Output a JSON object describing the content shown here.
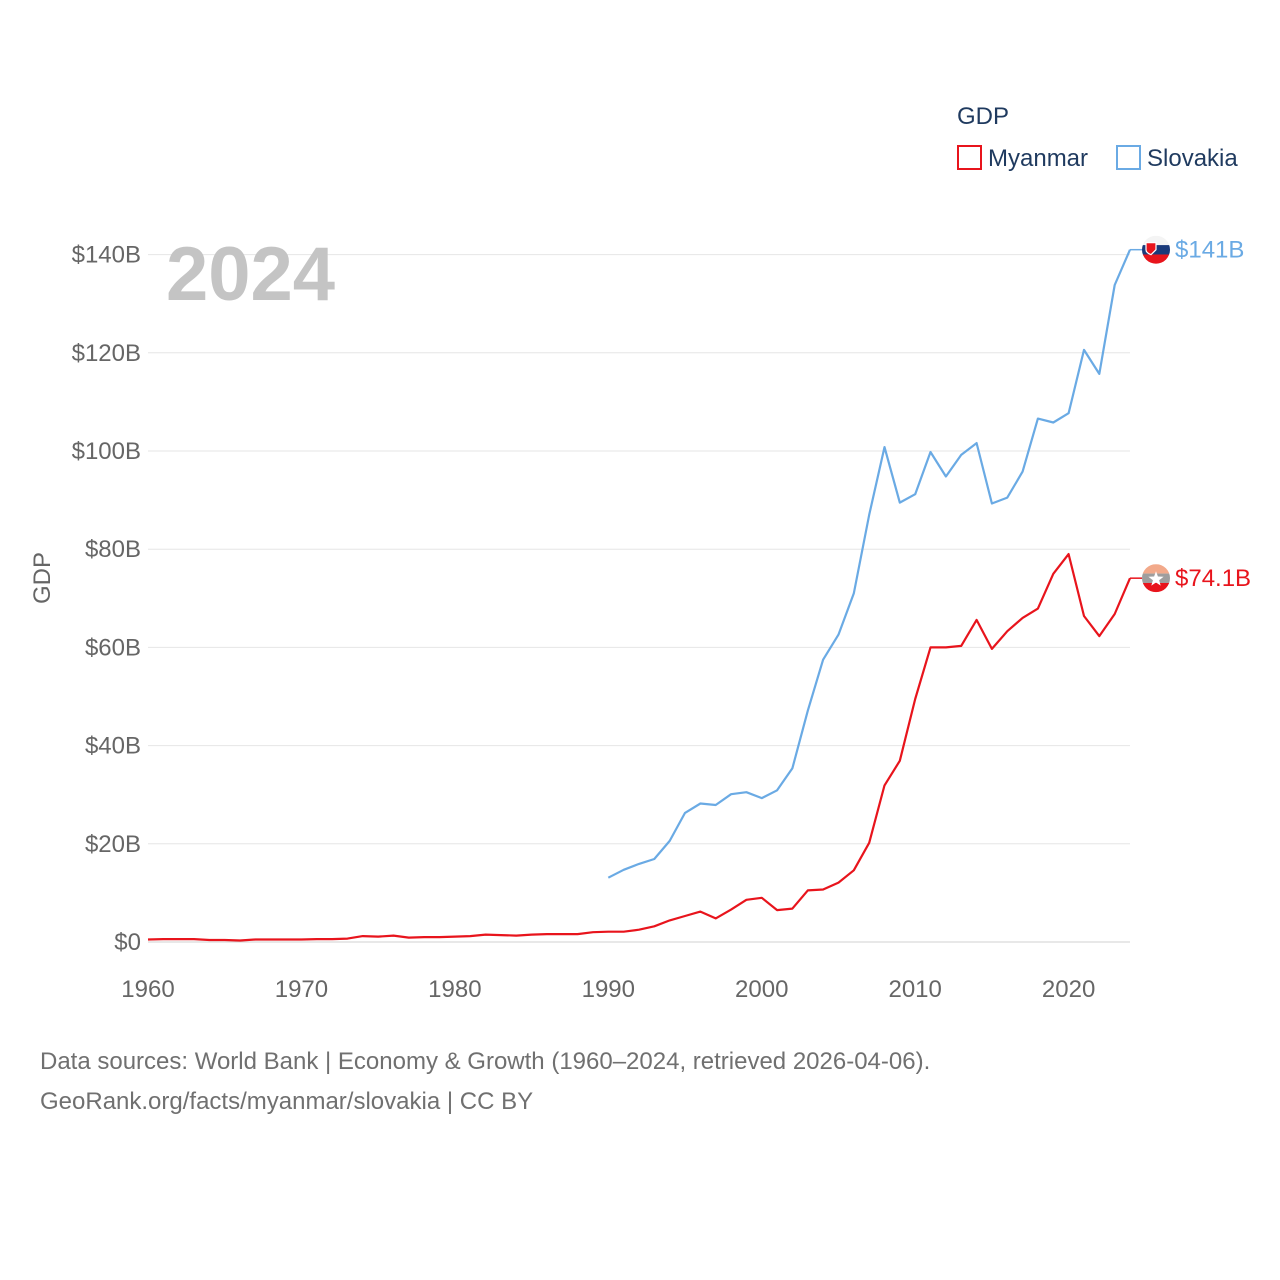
{
  "chart_data": {
    "type": "line",
    "year_label": "2024",
    "ylabel": "GDP",
    "xlim": [
      1960,
      2024
    ],
    "ylim": [
      0,
      145
    ],
    "x_ticks": [
      1960,
      1970,
      1980,
      1990,
      2000,
      2010,
      2020
    ],
    "x_tick_labels": [
      "1960",
      "1970",
      "1980",
      "1990",
      "2000",
      "2010",
      "2020"
    ],
    "y_ticks": [
      0,
      20,
      40,
      60,
      80,
      100,
      120,
      140
    ],
    "y_tick_labels": [
      "$0",
      "$20B",
      "$40B",
      "$60B",
      "$80B",
      "$100B",
      "$120B",
      "$140B"
    ],
    "legend": {
      "title": "GDP",
      "position": "top-right",
      "entries": [
        "Myanmar",
        "Slovakia"
      ]
    },
    "units": "USD billions",
    "series": [
      {
        "name": "Myanmar",
        "color": "#e8141c",
        "end_label": "$74.1B",
        "x": [
          1960,
          1961,
          1962,
          1963,
          1964,
          1965,
          1966,
          1967,
          1968,
          1969,
          1970,
          1971,
          1972,
          1973,
          1974,
          1975,
          1976,
          1977,
          1978,
          1979,
          1980,
          1981,
          1982,
          1983,
          1984,
          1985,
          1986,
          1987,
          1988,
          1989,
          1990,
          1991,
          1992,
          1993,
          1994,
          1995,
          1996,
          1997,
          1998,
          1999,
          2000,
          2001,
          2002,
          2003,
          2004,
          2005,
          2006,
          2007,
          2008,
          2009,
          2010,
          2011,
          2012,
          2013,
          2014,
          2015,
          2016,
          2017,
          2018,
          2019,
          2020,
          2021,
          2022,
          2023,
          2024
        ],
        "values": [
          0.5,
          0.6,
          0.6,
          0.6,
          0.4,
          0.4,
          0.3,
          0.5,
          0.5,
          0.5,
          0.5,
          0.6,
          0.6,
          0.7,
          1.2,
          1.1,
          1.3,
          0.9,
          1.0,
          1.0,
          1.1,
          1.2,
          1.5,
          1.4,
          1.3,
          1.5,
          1.6,
          1.6,
          1.6,
          2.0,
          2.1,
          2.1,
          2.5,
          3.2,
          4.4,
          5.3,
          6.2,
          4.8,
          6.6,
          8.6,
          9.0,
          6.5,
          6.8,
          10.5,
          10.7,
          12.1,
          14.6,
          20.2,
          31.9,
          36.9,
          49.5,
          60.0,
          60.0,
          60.3,
          65.6,
          59.7,
          63.3,
          66.0,
          67.9,
          75.0,
          79.0,
          66.4,
          62.3,
          66.8,
          74.1
        ]
      },
      {
        "name": "Slovakia",
        "color": "#6aaae4",
        "end_label": "$141B",
        "x": [
          1990,
          1991,
          1992,
          1993,
          1994,
          1995,
          1996,
          1997,
          1998,
          1999,
          2000,
          2001,
          2002,
          2003,
          2004,
          2005,
          2006,
          2007,
          2008,
          2009,
          2010,
          2011,
          2012,
          2013,
          2014,
          2015,
          2016,
          2017,
          2018,
          2019,
          2020,
          2021,
          2022,
          2023,
          2024
        ],
        "values": [
          13.1,
          14.7,
          15.9,
          16.9,
          20.6,
          26.3,
          28.2,
          27.9,
          30.1,
          30.5,
          29.3,
          30.9,
          35.4,
          47.1,
          57.5,
          62.6,
          71.0,
          87.0,
          100.8,
          89.5,
          91.2,
          99.8,
          94.8,
          99.2,
          101.6,
          89.3,
          90.5,
          95.8,
          106.6,
          105.8,
          107.7,
          120.6,
          115.7,
          133.8,
          141.0
        ]
      }
    ]
  },
  "source": {
    "line1": "Data sources: World Bank | Economy & Growth (1960–2024, retrieved 2026-04-06).",
    "line2": "GeoRank.org/facts/myanmar/slovakia | CC BY"
  }
}
